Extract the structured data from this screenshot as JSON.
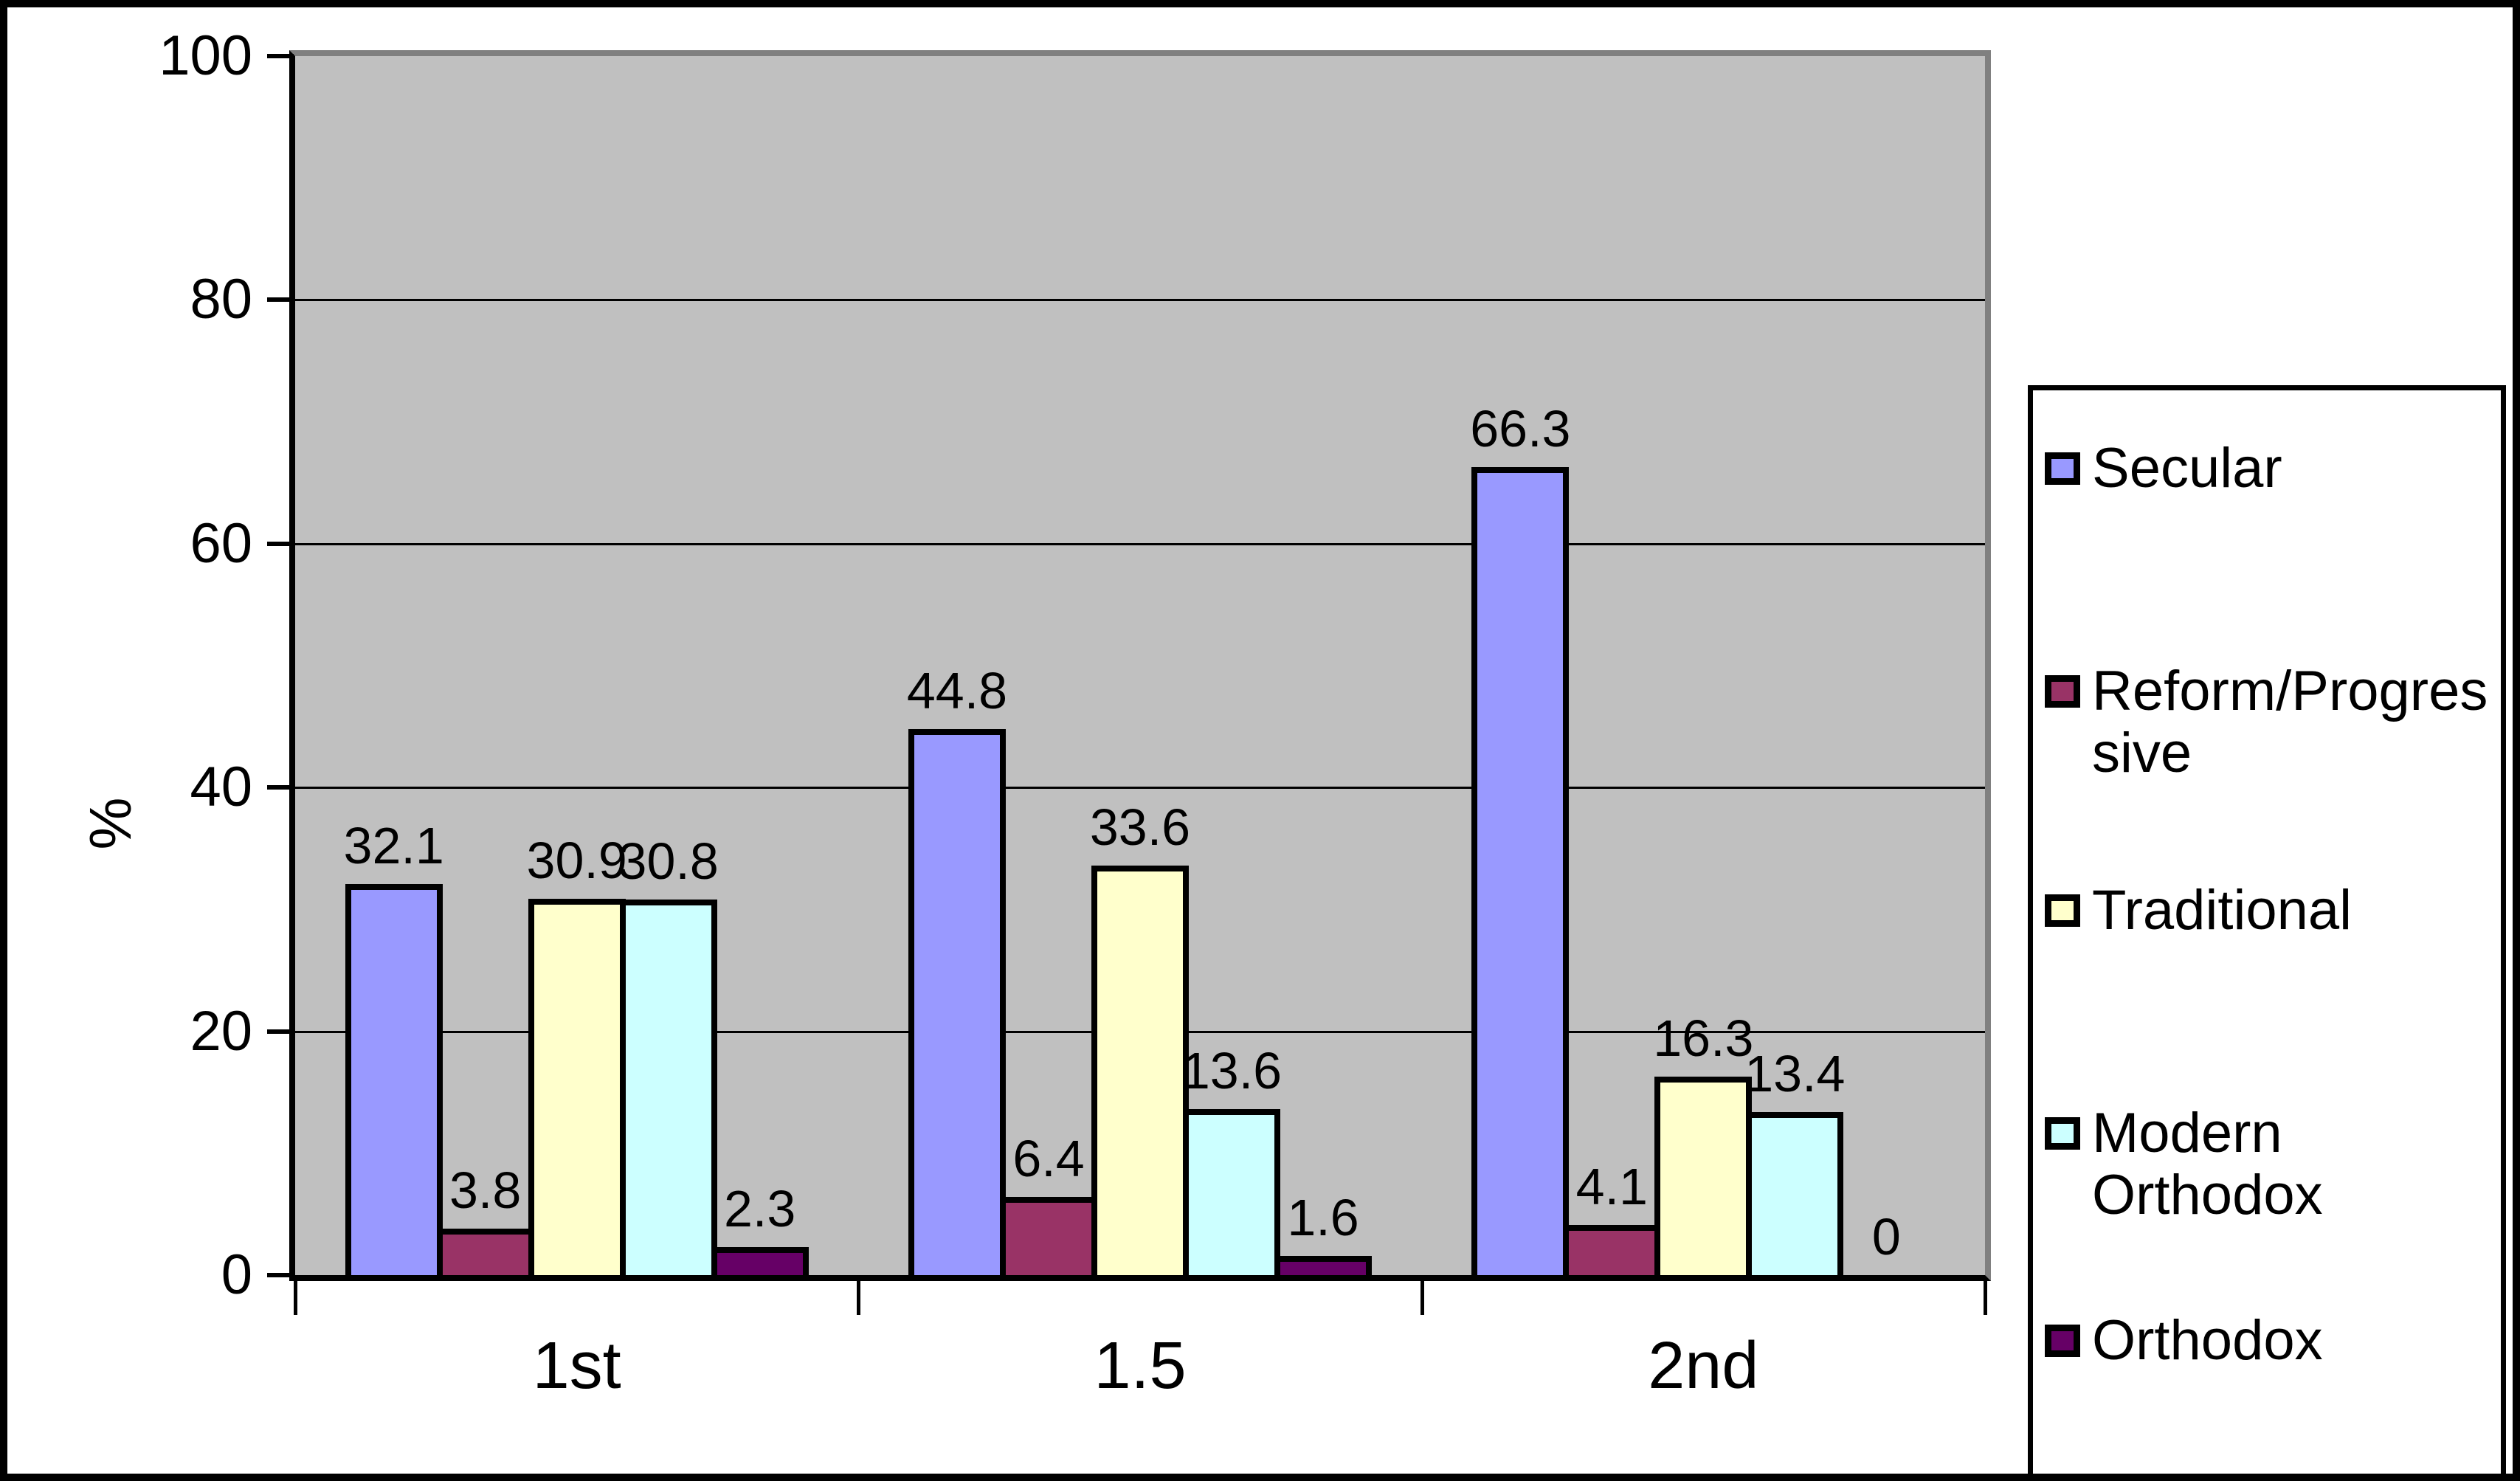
{
  "chart_data": {
    "type": "bar",
    "title": "",
    "xlabel": "",
    "ylabel": "%",
    "ylim": [
      0,
      100
    ],
    "yticks": [
      0,
      20,
      40,
      60,
      80,
      100
    ],
    "grid": true,
    "legend_position": "right",
    "categories": [
      "1st",
      "1.5",
      "2nd"
    ],
    "series": [
      {
        "name": "Secular",
        "legend_lines": [
          "Secular"
        ],
        "color": "#9999FF",
        "values": [
          32.1,
          44.8,
          66.3
        ]
      },
      {
        "name": "Reform/Progressive",
        "legend_lines": [
          "Reform/Progres",
          "sive"
        ],
        "color": "#993366",
        "values": [
          3.8,
          6.4,
          4.1
        ]
      },
      {
        "name": "Traditional",
        "legend_lines": [
          "Traditional"
        ],
        "color": "#FFFFCC",
        "values": [
          30.9,
          33.6,
          16.3
        ]
      },
      {
        "name": "Modern Orthodox",
        "legend_lines": [
          "Modern",
          "Orthodox"
        ],
        "color": "#CCFFFF",
        "values": [
          30.8,
          13.6,
          13.4
        ]
      },
      {
        "name": "Orthodox",
        "legend_lines": [
          "Orthodox"
        ],
        "color": "#660066",
        "values": [
          2.3,
          1.6,
          0
        ]
      }
    ],
    "data_labels": [
      [
        "32.1",
        "44.8",
        "66.3"
      ],
      [
        "3.8",
        "6.4",
        "4.1"
      ],
      [
        "30.9",
        "33.6",
        "16.3"
      ],
      [
        "30.8",
        "13.6",
        "13.4"
      ],
      [
        "2.3",
        "1.6",
        "0"
      ]
    ]
  },
  "colors": {
    "page_background": "#FFFFFF",
    "plot_background": "#C0C0C0",
    "plot_shadow_border": "#808080",
    "axis_line": "#000000",
    "gridline": "#000000",
    "legend_background": "#FFFFFF"
  }
}
